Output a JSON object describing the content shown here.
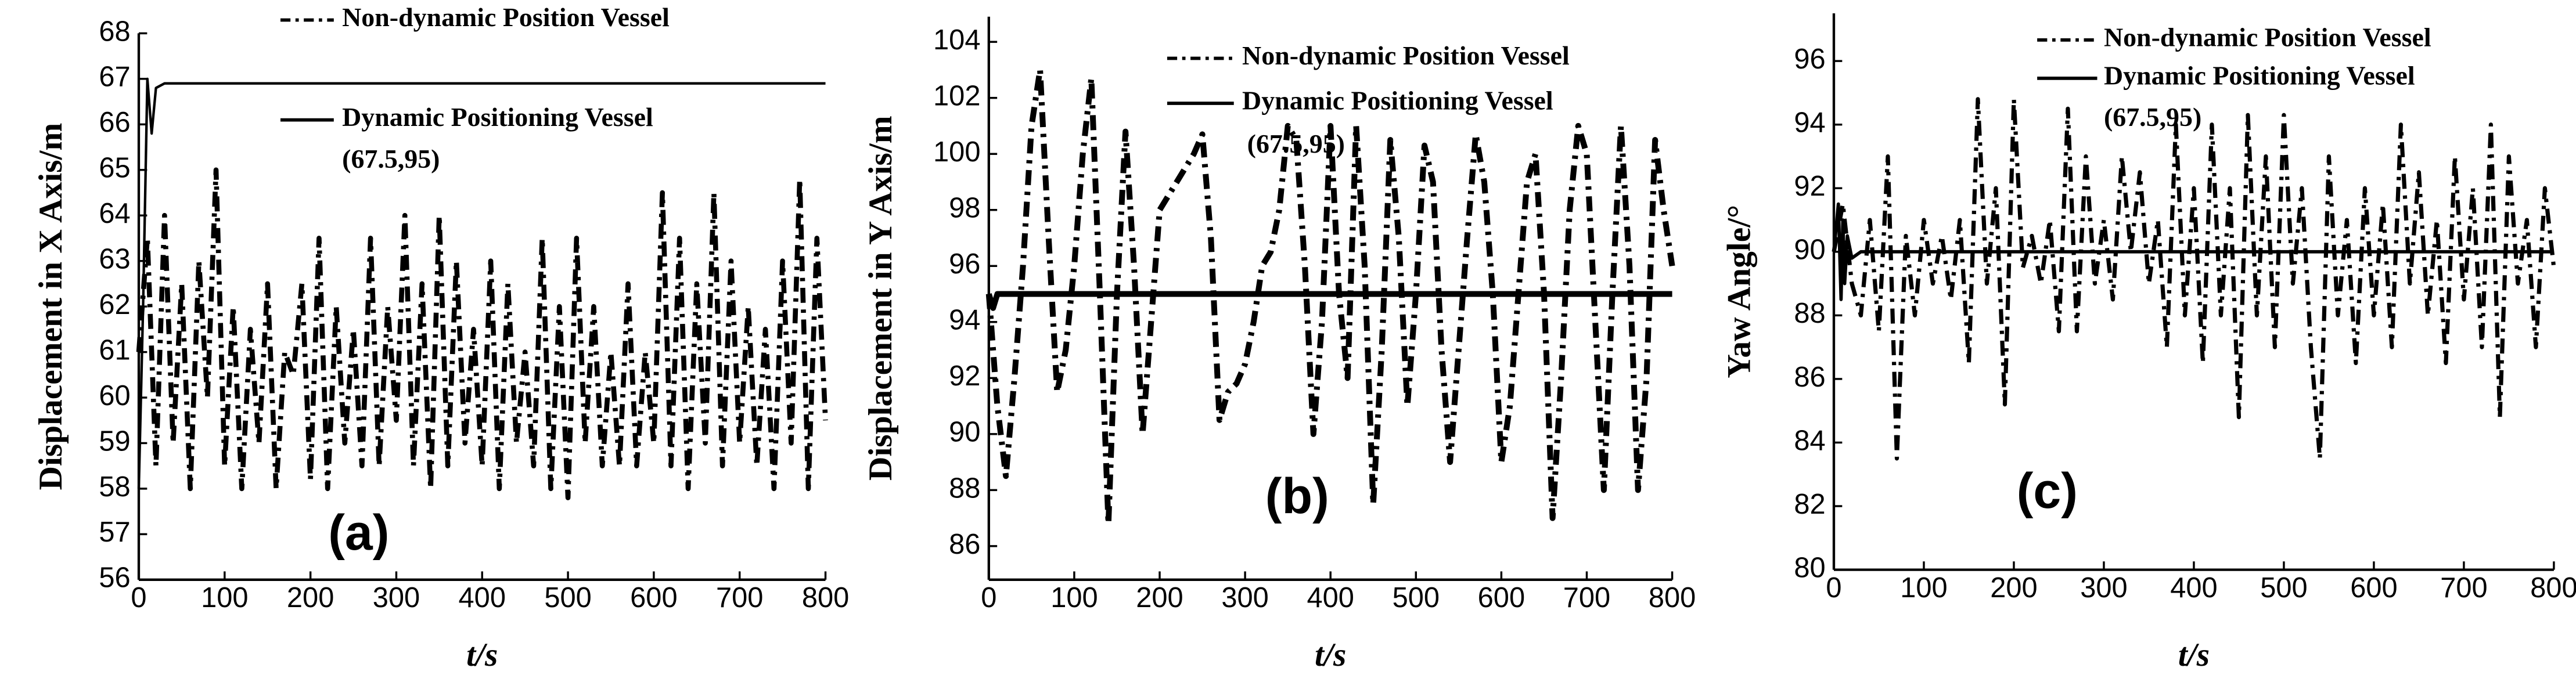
{
  "chart_data": [
    {
      "type": "line",
      "panel_label": "(a)",
      "y_label": "Displacement in X Axis/m",
      "x_label": "t/s",
      "annotation": "(67.5,95)",
      "xlim": [
        0,
        800
      ],
      "ylim": [
        56,
        68
      ],
      "xticks": [
        0,
        100,
        200,
        300,
        400,
        500,
        600,
        700,
        800
      ],
      "yticks": [
        56,
        57,
        58,
        59,
        60,
        61,
        62,
        63,
        64,
        65,
        66,
        67,
        68
      ],
      "series": [
        {
          "name": "Non-dynamic Position Vessel",
          "color": "#000000",
          "dash": "dashdot",
          "x": [
            0,
            10,
            20,
            30,
            40,
            50,
            60,
            70,
            80,
            90,
            100,
            110,
            120,
            130,
            140,
            150,
            160,
            170,
            180,
            190,
            200,
            210,
            220,
            230,
            240,
            250,
            260,
            270,
            280,
            290,
            300,
            310,
            320,
            330,
            340,
            350,
            360,
            370,
            380,
            390,
            400,
            410,
            420,
            430,
            440,
            450,
            460,
            470,
            480,
            490,
            500,
            510,
            520,
            530,
            540,
            550,
            560,
            570,
            580,
            590,
            600,
            610,
            620,
            630,
            640,
            650,
            660,
            670,
            680,
            690,
            700,
            710,
            720,
            730,
            740,
            750,
            760,
            770,
            780,
            790,
            800
          ],
          "values": [
            61,
            63.5,
            58.5,
            64,
            59,
            62.5,
            58,
            63,
            60,
            65,
            58.5,
            62,
            58,
            61.5,
            59,
            62.5,
            58,
            61,
            60.5,
            62.5,
            58.2,
            63.5,
            58,
            62,
            59,
            61.5,
            58.5,
            63.5,
            58.5,
            62,
            59.5,
            64,
            58.5,
            62.5,
            58,
            64,
            58.5,
            63,
            59,
            61.5,
            58.5,
            63,
            58,
            62.5,
            59,
            61,
            58.5,
            63.5,
            58,
            62,
            57.8,
            63.5,
            59,
            62,
            58.5,
            61,
            58.5,
            62.5,
            58.5,
            61,
            59,
            64.5,
            58.5,
            63.5,
            58,
            62.5,
            59,
            64.5,
            58.5,
            63,
            59,
            62,
            58.5,
            61.5,
            58,
            63,
            59,
            64.8,
            58,
            63.5,
            59.5
          ]
        },
        {
          "name": "Dynamic Positioning Vessel",
          "color": "#000000",
          "dash": "solid",
          "x": [
            0,
            5,
            10,
            15,
            20,
            30,
            50,
            100,
            200,
            300,
            400,
            500,
            600,
            700,
            800
          ],
          "values": [
            58,
            62,
            67,
            65.8,
            66.8,
            66.9,
            66.9,
            66.9,
            66.9,
            66.9,
            66.9,
            66.9,
            66.9,
            66.9,
            66.9
          ]
        }
      ]
    },
    {
      "type": "line",
      "panel_label": "(b)",
      "y_label": "Displacement in Y Axis/m",
      "x_label": "t/s",
      "annotation": "(67.5,95)",
      "xlim": [
        0,
        800
      ],
      "ylim": [
        84.8,
        104.9
      ],
      "xticks": [
        0,
        100,
        200,
        300,
        400,
        500,
        600,
        700,
        800
      ],
      "yticks": [
        86,
        88,
        90,
        92,
        94,
        96,
        98,
        100,
        102,
        104
      ],
      "series": [
        {
          "name": "Non-dynamic Position Vessel",
          "color": "#000000",
          "dash": "dashdot",
          "x": [
            0,
            10,
            20,
            30,
            40,
            50,
            60,
            70,
            80,
            90,
            100,
            110,
            120,
            130,
            140,
            150,
            160,
            170,
            180,
            190,
            200,
            210,
            220,
            230,
            240,
            250,
            260,
            270,
            280,
            290,
            300,
            310,
            320,
            330,
            340,
            350,
            360,
            370,
            380,
            390,
            400,
            410,
            420,
            430,
            440,
            450,
            460,
            470,
            480,
            490,
            500,
            510,
            520,
            530,
            540,
            550,
            560,
            570,
            580,
            590,
            600,
            610,
            620,
            630,
            640,
            650,
            660,
            670,
            680,
            690,
            700,
            710,
            720,
            730,
            740,
            750,
            760,
            770,
            780,
            790,
            800
          ],
          "values": [
            95,
            91,
            88.5,
            92,
            96,
            101,
            103,
            97,
            91.5,
            93,
            96,
            100,
            102.7,
            95,
            86.8,
            95,
            100.8,
            96,
            90,
            94,
            98,
            98.5,
            99,
            99.5,
            100,
            100.7,
            97,
            90.5,
            91.5,
            91.8,
            92.5,
            94,
            96,
            96.5,
            98,
            101,
            100.5,
            96,
            90,
            94,
            101,
            95,
            92,
            101,
            96,
            87.5,
            93,
            100.5,
            97,
            91,
            95,
            100.3,
            99,
            93,
            89,
            93,
            97,
            100.7,
            99,
            95,
            89,
            91,
            95,
            99,
            100,
            95,
            87,
            92,
            98,
            101,
            100,
            94,
            88,
            95,
            101,
            96,
            88,
            92,
            100.5,
            98,
            96
          ]
        },
        {
          "name": "Dynamic Positioning Vessel",
          "color": "#000000",
          "dash": "solid",
          "x": [
            0,
            5,
            10,
            20,
            800
          ],
          "values": [
            95,
            94.5,
            95,
            95,
            95
          ]
        }
      ]
    },
    {
      "type": "line",
      "panel_label": "(c)",
      "y_label": "Yaw Angle/°",
      "x_label": "t/s",
      "annotation": "(67.5,95)",
      "xlim": [
        0,
        800
      ],
      "ylim": [
        80,
        97.5
      ],
      "xticks": [
        0,
        100,
        200,
        300,
        400,
        500,
        600,
        700,
        800
      ],
      "yticks": [
        80,
        82,
        84,
        86,
        88,
        90,
        92,
        94,
        96
      ],
      "series": [
        {
          "name": "Non-dynamic Position Vessel",
          "color": "#000000",
          "dash": "dashdot",
          "x": [
            0,
            10,
            20,
            30,
            40,
            50,
            60,
            70,
            80,
            90,
            100,
            110,
            120,
            130,
            140,
            150,
            160,
            170,
            180,
            190,
            200,
            210,
            220,
            230,
            240,
            250,
            260,
            270,
            280,
            290,
            300,
            310,
            320,
            330,
            340,
            350,
            360,
            370,
            380,
            390,
            400,
            410,
            420,
            430,
            440,
            450,
            460,
            470,
            480,
            490,
            500,
            510,
            520,
            530,
            540,
            550,
            560,
            570,
            580,
            590,
            600,
            610,
            620,
            630,
            640,
            650,
            660,
            670,
            680,
            690,
            700,
            710,
            720,
            730,
            740,
            750,
            760,
            770,
            780,
            790,
            800
          ],
          "values": [
            90,
            91.5,
            89,
            88,
            91,
            87.5,
            93,
            83.5,
            90.5,
            88,
            91,
            89,
            90.5,
            88.5,
            91,
            86.5,
            94.8,
            89,
            92,
            85.2,
            94.8,
            89.5,
            90.5,
            89,
            91,
            87.5,
            94.5,
            87.5,
            93,
            89,
            91,
            88.5,
            93,
            90,
            92.5,
            89,
            91,
            87,
            94,
            88,
            92,
            86.5,
            94,
            88,
            92,
            84.8,
            94.3,
            88,
            93,
            87,
            94.3,
            89,
            92,
            87,
            83.5,
            93,
            88,
            91,
            86.5,
            92,
            88,
            91.5,
            87,
            94,
            89,
            92.5,
            88,
            91,
            86.5,
            93,
            88.5,
            92,
            87,
            94,
            84.8,
            93,
            89,
            91,
            87,
            92,
            89.5
          ]
        },
        {
          "name": "Dynamic Positioning Vessel",
          "color": "#000000",
          "dash": "solid",
          "x": [
            0,
            5,
            8,
            10,
            12,
            15,
            20,
            30,
            800
          ],
          "values": [
            90,
            91.5,
            88.5,
            91,
            89,
            90.5,
            89.8,
            90,
            90
          ]
        }
      ]
    }
  ]
}
